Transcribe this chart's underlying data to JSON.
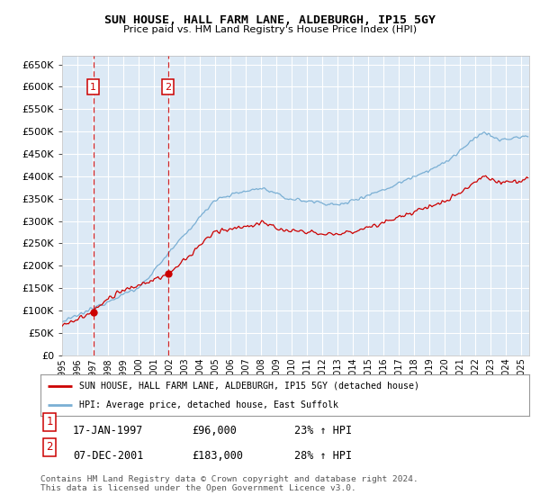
{
  "title": "SUN HOUSE, HALL FARM LANE, ALDEBURGH, IP15 5GY",
  "subtitle": "Price paid vs. HM Land Registry's House Price Index (HPI)",
  "bg_color": "#dce9f5",
  "grid_color": "#ffffff",
  "hpi_color": "#7aafd4",
  "house_color": "#cc0000",
  "sale1_date_num": 1997.04,
  "sale1_price": 96000,
  "sale1_label": "1",
  "sale2_date_num": 2001.92,
  "sale2_price": 183000,
  "sale2_label": "2",
  "ylim_min": 0,
  "ylim_max": 670000,
  "ytick_step": 50000,
  "legend_house_label": "SUN HOUSE, HALL FARM LANE, ALDEBURGH, IP15 5GY (detached house)",
  "legend_hpi_label": "HPI: Average price, detached house, East Suffolk",
  "footnote": "Contains HM Land Registry data © Crown copyright and database right 2024.\nThis data is licensed under the Open Government Licence v3.0.",
  "xmin": 1995.0,
  "xmax": 2025.5,
  "xtick_years": [
    1995,
    1996,
    1997,
    1998,
    1999,
    2000,
    2001,
    2002,
    2003,
    2004,
    2005,
    2006,
    2007,
    2008,
    2009,
    2010,
    2011,
    2012,
    2013,
    2014,
    2015,
    2016,
    2017,
    2018,
    2019,
    2020,
    2021,
    2022,
    2023,
    2024,
    2025
  ]
}
